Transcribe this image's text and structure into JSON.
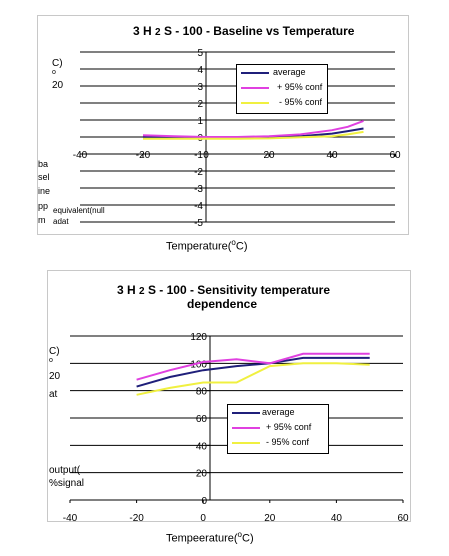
{
  "chart_data": [
    {
      "type": "line",
      "title_parts": [
        "3",
        "H",
        "2",
        "S - 100 - Baseline  vs  Temperature"
      ],
      "xlabel": "Temperature(",
      "xlabel_o": "o",
      "xlabel_tail": "C)",
      "ylabel_fragments": [
        "C)",
        "o",
        "20",
        "ba",
        "sel",
        "ine",
        "pp",
        "m",
        "equivalent(null",
        "adat"
      ],
      "xlim": [
        -40,
        60
      ],
      "ylim": [
        -5,
        5
      ],
      "x_ticks": [
        "-40",
        "-20",
        "0",
        "20",
        "40",
        "60"
      ],
      "y_ticks": [
        "5",
        "4",
        "3",
        "2",
        "1",
        "0",
        "-1",
        "-2",
        "-3",
        "-4",
        "-5"
      ],
      "grid": "horizontal",
      "legend": "top-center",
      "x": [
        -20,
        -10,
        0,
        10,
        20,
        30,
        40,
        45,
        50
      ],
      "series": [
        {
          "name": "average",
          "color": "#1f1f7a",
          "values": [
            0.0,
            -0.05,
            -0.05,
            -0.05,
            -0.02,
            0.05,
            0.2,
            0.35,
            0.5
          ]
        },
        {
          "name": "+ 95% conf",
          "color": "#e040e0",
          "values": [
            0.1,
            0.05,
            0.0,
            0.0,
            0.05,
            0.15,
            0.4,
            0.6,
            0.95
          ]
        },
        {
          "name": "-  95% conf",
          "color": "#f0f040",
          "values": [
            -0.1,
            -0.1,
            -0.1,
            -0.1,
            -0.08,
            -0.02,
            0.05,
            0.15,
            0.3
          ]
        }
      ]
    },
    {
      "type": "line",
      "title_parts": [
        "3",
        "H",
        "2",
        "S - 100 - Sensitivity  temperature",
        "dependence"
      ],
      "xlabel": "Tempeerature(",
      "xlabel_o": "o",
      "xlabel_tail": "C)",
      "ylabel_fragments": [
        "C)",
        "o",
        "20",
        "at",
        "output(",
        "%signal"
      ],
      "xlim": [
        -40,
        60
      ],
      "ylim": [
        0,
        120
      ],
      "x_ticks": [
        "-40",
        "-20",
        "0",
        "20",
        "40",
        "60"
      ],
      "y_ticks": [
        "120",
        "100",
        "80",
        "60",
        "40",
        "20",
        "0"
      ],
      "grid": "horizontal",
      "legend": "center",
      "x": [
        -20,
        -10,
        0,
        10,
        20,
        30,
        40,
        50
      ],
      "series": [
        {
          "name": "average",
          "color": "#1f1f7a",
          "values": [
            83,
            90,
            95,
            98,
            100,
            104,
            104,
            104
          ]
        },
        {
          "name": "+  95% conf",
          "color": "#e040e0",
          "values": [
            88,
            95,
            101,
            103,
            100,
            107,
            107,
            107
          ]
        },
        {
          "name": "-  95% conf",
          "color": "#f0f040",
          "values": [
            77,
            82,
            86,
            86,
            98,
            100,
            100,
            99
          ]
        }
      ]
    }
  ]
}
